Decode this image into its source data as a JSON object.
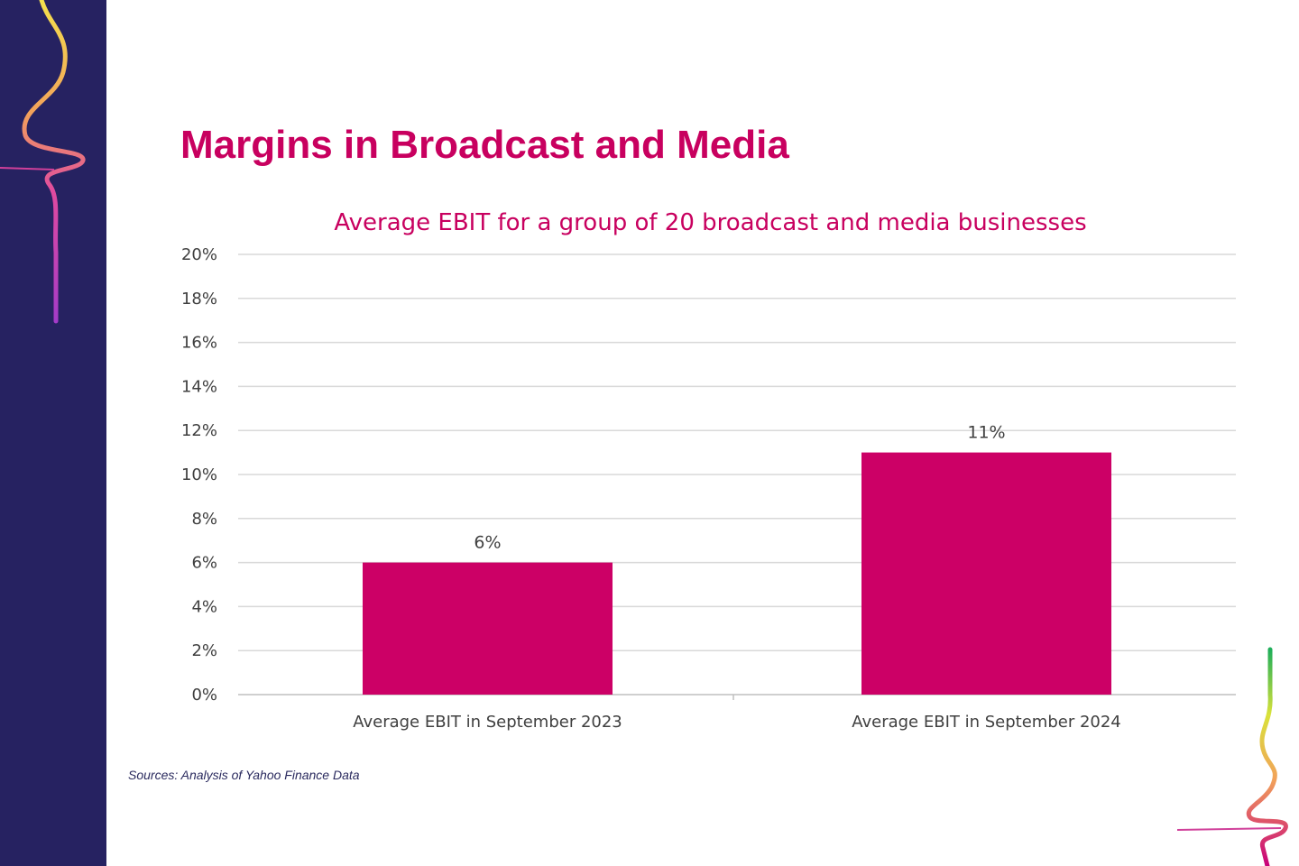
{
  "slide": {
    "title": "Margins in Broadcast and Media",
    "source": "Sources: Analysis of Yahoo Finance Data"
  },
  "colors": {
    "sidebar": "#262261",
    "accent": "#c8005f",
    "bar": "#cc0066",
    "grid": "#d9d9d9"
  },
  "chart_data": {
    "type": "bar",
    "title": "Average EBIT for a group of 20 broadcast and media businesses",
    "categories": [
      "Average EBIT in September 2023",
      "Average EBIT in September 2024"
    ],
    "values": [
      6,
      11
    ],
    "data_labels": [
      "6%",
      "11%"
    ],
    "ylim": [
      0,
      20
    ],
    "yticks": [
      "0%",
      "2%",
      "4%",
      "6%",
      "8%",
      "10%",
      "12%",
      "14%",
      "16%",
      "18%",
      "20%"
    ],
    "xlabel": "",
    "ylabel": "",
    "grid": true,
    "legend": "none"
  }
}
